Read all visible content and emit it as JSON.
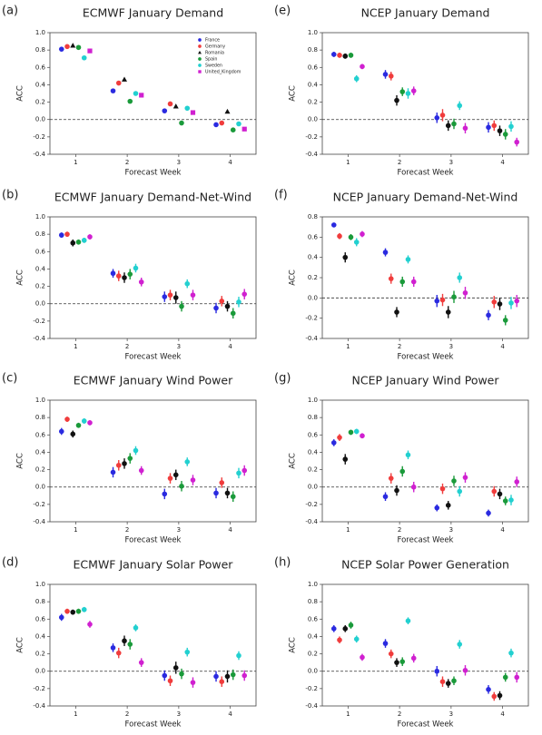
{
  "chart_data": [
    {
      "type": "scatter",
      "panel_label": "(a)",
      "title": "ECMWF January Demand",
      "xlabel": "Forecast Week",
      "ylabel": "ACC",
      "x": [
        1,
        2,
        3,
        4
      ],
      "xlim": [
        0.5,
        4.5
      ],
      "xticks": [
        1,
        2,
        3,
        4
      ],
      "ylim": [
        -0.4,
        1.0
      ],
      "yticks": [
        -0.4,
        -0.2,
        {
          "value": 0,
          "label": "0.0"
        },
        0.2,
        0.4,
        0.6,
        0.8,
        {
          "value": 1,
          "label": "1.0"
        }
      ],
      "zero_line": true,
      "legend": "upper right",
      "series": [
        {
          "name": "France",
          "color": "#2a2ae0",
          "marker": "circle",
          "values": [
            0.81,
            0.33,
            0.1,
            -0.06
          ]
        },
        {
          "name": "Germany",
          "color": "#f03c3c",
          "marker": "circle",
          "values": [
            0.84,
            0.42,
            0.18,
            -0.04
          ]
        },
        {
          "name": "Romania",
          "color": "#111111",
          "marker": "triangle",
          "values": [
            0.85,
            0.46,
            0.15,
            0.09
          ]
        },
        {
          "name": "Spain",
          "color": "#1a9a3a",
          "marker": "circle",
          "values": [
            0.83,
            0.21,
            -0.04,
            -0.12
          ]
        },
        {
          "name": "Sweden",
          "color": "#22d0d0",
          "marker": "circle",
          "values": [
            0.71,
            0.3,
            0.13,
            -0.05
          ]
        },
        {
          "name": "United_Kingdom",
          "color": "#d020d0",
          "marker": "square",
          "values": [
            0.79,
            0.28,
            0.08,
            -0.11
          ]
        }
      ]
    },
    {
      "type": "scatter",
      "panel_label": "(b)",
      "title": "ECMWF January Demand-Net-Wind",
      "xlabel": "Forecast Week",
      "ylabel": "ACC",
      "x": [
        1,
        2,
        3,
        4
      ],
      "xlim": [
        0.5,
        4.5
      ],
      "xticks": [
        1,
        2,
        3,
        4
      ],
      "ylim": [
        -0.4,
        1.0
      ],
      "yticks": [
        -0.4,
        -0.2,
        {
          "value": 0,
          "label": "0.0"
        },
        0.2,
        0.4,
        0.6,
        0.8,
        {
          "value": 1,
          "label": "1.0"
        }
      ],
      "zero_line": true,
      "series": [
        {
          "color": "#2a2ae0",
          "values": [
            0.79,
            0.35,
            0.08,
            -0.05
          ],
          "errors": [
            0.03,
            0.05,
            0.06,
            0.06
          ]
        },
        {
          "color": "#f03c3c",
          "values": [
            0.8,
            0.32,
            0.1,
            0.03
          ],
          "errors": [
            0.03,
            0.06,
            0.06,
            0.06
          ]
        },
        {
          "color": "#111111",
          "values": [
            0.7,
            0.3,
            0.07,
            -0.03
          ],
          "errors": [
            0.04,
            0.06,
            0.07,
            0.06
          ]
        },
        {
          "color": "#1a9a3a",
          "values": [
            0.71,
            0.34,
            -0.03,
            -0.11
          ],
          "errors": [
            0.03,
            0.06,
            0.06,
            0.06
          ]
        },
        {
          "color": "#22d0d0",
          "values": [
            0.73,
            0.41,
            0.23,
            0.02
          ],
          "errors": [
            0.03,
            0.05,
            0.05,
            0.06
          ]
        },
        {
          "color": "#d020d0",
          "values": [
            0.77,
            0.25,
            0.1,
            0.11
          ],
          "errors": [
            0.03,
            0.05,
            0.06,
            0.06
          ]
        }
      ]
    },
    {
      "type": "scatter",
      "panel_label": "(c)",
      "title": "ECMWF January Wind Power",
      "xlabel": "Forecast Week",
      "ylabel": "ACC",
      "x": [
        1,
        2,
        3,
        4
      ],
      "xlim": [
        0.5,
        4.5
      ],
      "xticks": [
        1,
        2,
        3,
        4
      ],
      "ylim": [
        -0.4,
        1.0
      ],
      "yticks": [
        -0.4,
        -0.2,
        {
          "value": 0,
          "label": "0.0"
        },
        0.2,
        0.4,
        0.6,
        0.8,
        {
          "value": 1,
          "label": "1.0"
        }
      ],
      "zero_line": true,
      "series": [
        {
          "color": "#2a2ae0",
          "values": [
            0.64,
            0.17,
            -0.08,
            -0.07
          ],
          "errors": [
            0.04,
            0.06,
            0.06,
            0.06
          ]
        },
        {
          "color": "#f03c3c",
          "values": [
            0.78,
            0.25,
            0.1,
            0.05
          ],
          "errors": [
            0.03,
            0.06,
            0.06,
            0.06
          ]
        },
        {
          "color": "#111111",
          "values": [
            0.61,
            0.27,
            0.14,
            -0.07
          ],
          "errors": [
            0.04,
            0.06,
            0.06,
            0.06
          ]
        },
        {
          "color": "#1a9a3a",
          "values": [
            0.71,
            0.33,
            0.01,
            -0.11
          ],
          "errors": [
            0.03,
            0.06,
            0.06,
            0.06
          ]
        },
        {
          "color": "#22d0d0",
          "values": [
            0.76,
            0.42,
            0.29,
            0.16
          ],
          "errors": [
            0.03,
            0.05,
            0.05,
            0.06
          ]
        },
        {
          "color": "#d020d0",
          "values": [
            0.74,
            0.19,
            0.08,
            0.19
          ],
          "errors": [
            0.03,
            0.05,
            0.06,
            0.06
          ]
        }
      ]
    },
    {
      "type": "scatter",
      "panel_label": "(d)",
      "title": "ECMWF January Solar Power",
      "xlabel": "Forecast Week",
      "ylabel": "ACC",
      "x": [
        1,
        2,
        3,
        4
      ],
      "xlim": [
        0.5,
        4.5
      ],
      "xticks": [
        1,
        2,
        3,
        4
      ],
      "ylim": [
        -0.4,
        1.0
      ],
      "yticks": [
        -0.4,
        -0.2,
        {
          "value": 0,
          "label": "0.0"
        },
        0.2,
        0.4,
        0.6,
        0.8,
        {
          "value": 1,
          "label": "1.0"
        }
      ],
      "zero_line": true,
      "series": [
        {
          "color": "#2a2ae0",
          "values": [
            0.62,
            0.27,
            -0.05,
            -0.06
          ],
          "errors": [
            0.04,
            0.05,
            0.06,
            0.06
          ]
        },
        {
          "color": "#f03c3c",
          "values": [
            0.69,
            0.21,
            -0.11,
            -0.12
          ],
          "errors": [
            0.03,
            0.06,
            0.06,
            0.06
          ]
        },
        {
          "color": "#111111",
          "values": [
            0.68,
            0.35,
            0.04,
            -0.06
          ],
          "errors": [
            0.03,
            0.06,
            0.07,
            0.07
          ]
        },
        {
          "color": "#1a9a3a",
          "values": [
            0.69,
            0.31,
            -0.03,
            -0.04
          ],
          "errors": [
            0.03,
            0.06,
            0.06,
            0.06
          ]
        },
        {
          "color": "#22d0d0",
          "values": [
            0.71,
            0.5,
            0.22,
            0.18
          ],
          "errors": [
            0.03,
            0.04,
            0.05,
            0.05
          ]
        },
        {
          "color": "#d020d0",
          "values": [
            0.54,
            0.1,
            -0.13,
            -0.05
          ],
          "errors": [
            0.04,
            0.05,
            0.06,
            0.06
          ]
        }
      ]
    },
    {
      "type": "scatter",
      "panel_label": "(e)",
      "title": "NCEP January Demand",
      "xlabel": "Forecast Week",
      "ylabel": "ACC",
      "x": [
        1,
        2,
        3,
        4
      ],
      "xlim": [
        0.5,
        4.5
      ],
      "xticks": [
        1,
        2,
        3,
        4
      ],
      "ylim": [
        -0.4,
        1.0
      ],
      "yticks": [
        -0.4,
        -0.2,
        {
          "value": 0,
          "label": "0.0"
        },
        0.2,
        0.4,
        0.6,
        0.8,
        {
          "value": 1,
          "label": "1.0"
        }
      ],
      "zero_line": true,
      "series": [
        {
          "color": "#2a2ae0",
          "values": [
            0.75,
            0.52,
            0.02,
            -0.09
          ],
          "errors": [
            0.03,
            0.05,
            0.06,
            0.06
          ]
        },
        {
          "color": "#f03c3c",
          "values": [
            0.74,
            0.5,
            0.05,
            -0.07
          ],
          "errors": [
            0.03,
            0.05,
            0.07,
            0.06
          ]
        },
        {
          "color": "#111111",
          "values": [
            0.73,
            0.22,
            -0.07,
            -0.13
          ],
          "errors": [
            0.03,
            0.06,
            0.06,
            0.06
          ]
        },
        {
          "color": "#1a9a3a",
          "values": [
            0.74,
            0.32,
            -0.05,
            -0.17
          ],
          "errors": [
            0.03,
            0.05,
            0.06,
            0.06
          ]
        },
        {
          "color": "#22d0d0",
          "values": [
            0.47,
            0.3,
            0.16,
            -0.08
          ],
          "errors": [
            0.04,
            0.06,
            0.05,
            0.06
          ]
        },
        {
          "color": "#d020d0",
          "values": [
            0.61,
            0.33,
            -0.1,
            -0.26
          ],
          "errors": [
            0.03,
            0.05,
            0.06,
            0.05
          ]
        }
      ]
    },
    {
      "type": "scatter",
      "panel_label": "(f)",
      "title": "NCEP January Demand-Net-Wind",
      "xlabel": "Forecast Week",
      "ylabel": "ACC",
      "x": [
        1,
        2,
        3,
        4
      ],
      "xlim": [
        0.5,
        4.5
      ],
      "xticks": [
        1,
        2,
        3,
        4
      ],
      "ylim": [
        -0.4,
        0.8
      ],
      "yticks": [
        -0.4,
        -0.2,
        {
          "value": 0,
          "label": "0.0"
        },
        0.2,
        0.4,
        0.6,
        0.8
      ],
      "zero_line": true,
      "series": [
        {
          "color": "#2a2ae0",
          "values": [
            0.72,
            0.45,
            -0.03,
            -0.17
          ],
          "errors": [
            0.02,
            0.04,
            0.06,
            0.05
          ]
        },
        {
          "color": "#f03c3c",
          "values": [
            0.61,
            0.19,
            -0.02,
            -0.04
          ],
          "errors": [
            0.03,
            0.05,
            0.06,
            0.06
          ]
        },
        {
          "color": "#111111",
          "values": [
            0.4,
            -0.14,
            -0.14,
            -0.06
          ],
          "errors": [
            0.05,
            0.05,
            0.06,
            0.06
          ]
        },
        {
          "color": "#1a9a3a",
          "values": [
            0.6,
            0.16,
            0.01,
            -0.22
          ],
          "errors": [
            0.03,
            0.05,
            0.06,
            0.05
          ]
        },
        {
          "color": "#22d0d0",
          "values": [
            0.55,
            0.38,
            0.2,
            -0.05
          ],
          "errors": [
            0.04,
            0.04,
            0.05,
            0.06
          ]
        },
        {
          "color": "#d020d0",
          "values": [
            0.63,
            0.16,
            0.05,
            -0.03
          ],
          "errors": [
            0.03,
            0.05,
            0.06,
            0.06
          ]
        }
      ]
    },
    {
      "type": "scatter",
      "panel_label": "(g)",
      "title": "NCEP January Wind Power",
      "xlabel": "Forecast Week",
      "ylabel": "ACC",
      "x": [
        1,
        2,
        3,
        4
      ],
      "xlim": [
        0.5,
        4.5
      ],
      "xticks": [
        1,
        2,
        3,
        4
      ],
      "ylim": [
        -0.4,
        1.0
      ],
      "yticks": [
        -0.4,
        -0.2,
        {
          "value": 0,
          "label": "0.0"
        },
        0.2,
        0.4,
        0.6,
        0.8,
        {
          "value": 1,
          "label": "1.0"
        }
      ],
      "zero_line": true,
      "series": [
        {
          "color": "#2a2ae0",
          "values": [
            0.51,
            -0.11,
            -0.24,
            -0.3
          ],
          "errors": [
            0.04,
            0.05,
            0.04,
            0.04
          ]
        },
        {
          "color": "#f03c3c",
          "values": [
            0.57,
            0.1,
            -0.02,
            -0.05
          ],
          "errors": [
            0.04,
            0.06,
            0.06,
            0.06
          ]
        },
        {
          "color": "#111111",
          "values": [
            0.32,
            -0.04,
            -0.21,
            -0.08
          ],
          "errors": [
            0.06,
            0.06,
            0.05,
            0.06
          ]
        },
        {
          "color": "#1a9a3a",
          "values": [
            0.63,
            0.18,
            0.07,
            -0.16
          ],
          "errors": [
            0.03,
            0.06,
            0.06,
            0.05
          ]
        },
        {
          "color": "#22d0d0",
          "values": [
            0.64,
            0.37,
            -0.05,
            -0.15
          ],
          "errors": [
            0.03,
            0.05,
            0.06,
            0.06
          ]
        },
        {
          "color": "#d020d0",
          "values": [
            0.59,
            0.0,
            0.11,
            0.06
          ],
          "errors": [
            0.03,
            0.06,
            0.06,
            0.06
          ]
        }
      ]
    },
    {
      "type": "scatter",
      "panel_label": "(h)",
      "title": "NCEP Solar Power Generation",
      "xlabel": "Forecast Week",
      "ylabel": "ACC",
      "x": [
        1,
        2,
        3,
        4
      ],
      "xlim": [
        0.5,
        4.5
      ],
      "xticks": [
        1,
        2,
        3,
        4
      ],
      "ylim": [
        -0.4,
        1.0
      ],
      "yticks": [
        -0.4,
        -0.2,
        {
          "value": 0,
          "label": "0.0"
        },
        0.2,
        0.4,
        0.6,
        0.8,
        {
          "value": 1,
          "label": "1.0"
        }
      ],
      "zero_line": true,
      "series": [
        {
          "color": "#2a2ae0",
          "values": [
            0.49,
            0.32,
            0.0,
            -0.21
          ],
          "errors": [
            0.04,
            0.05,
            0.06,
            0.05
          ]
        },
        {
          "color": "#f03c3c",
          "values": [
            0.36,
            0.2,
            -0.12,
            -0.29
          ],
          "errors": [
            0.04,
            0.05,
            0.06,
            0.05
          ]
        },
        {
          "color": "#111111",
          "values": [
            0.49,
            0.1,
            -0.14,
            -0.28
          ],
          "errors": [
            0.04,
            0.05,
            0.05,
            0.05
          ]
        },
        {
          "color": "#1a9a3a",
          "values": [
            0.53,
            0.11,
            -0.11,
            -0.07
          ],
          "errors": [
            0.04,
            0.05,
            0.05,
            0.05
          ]
        },
        {
          "color": "#22d0d0",
          "values": [
            0.37,
            0.58,
            0.31,
            0.21
          ],
          "errors": [
            0.04,
            0.04,
            0.05,
            0.05
          ]
        },
        {
          "color": "#d020d0",
          "values": [
            0.16,
            0.15,
            0.01,
            -0.07
          ],
          "errors": [
            0.04,
            0.05,
            0.06,
            0.06
          ]
        }
      ]
    }
  ]
}
